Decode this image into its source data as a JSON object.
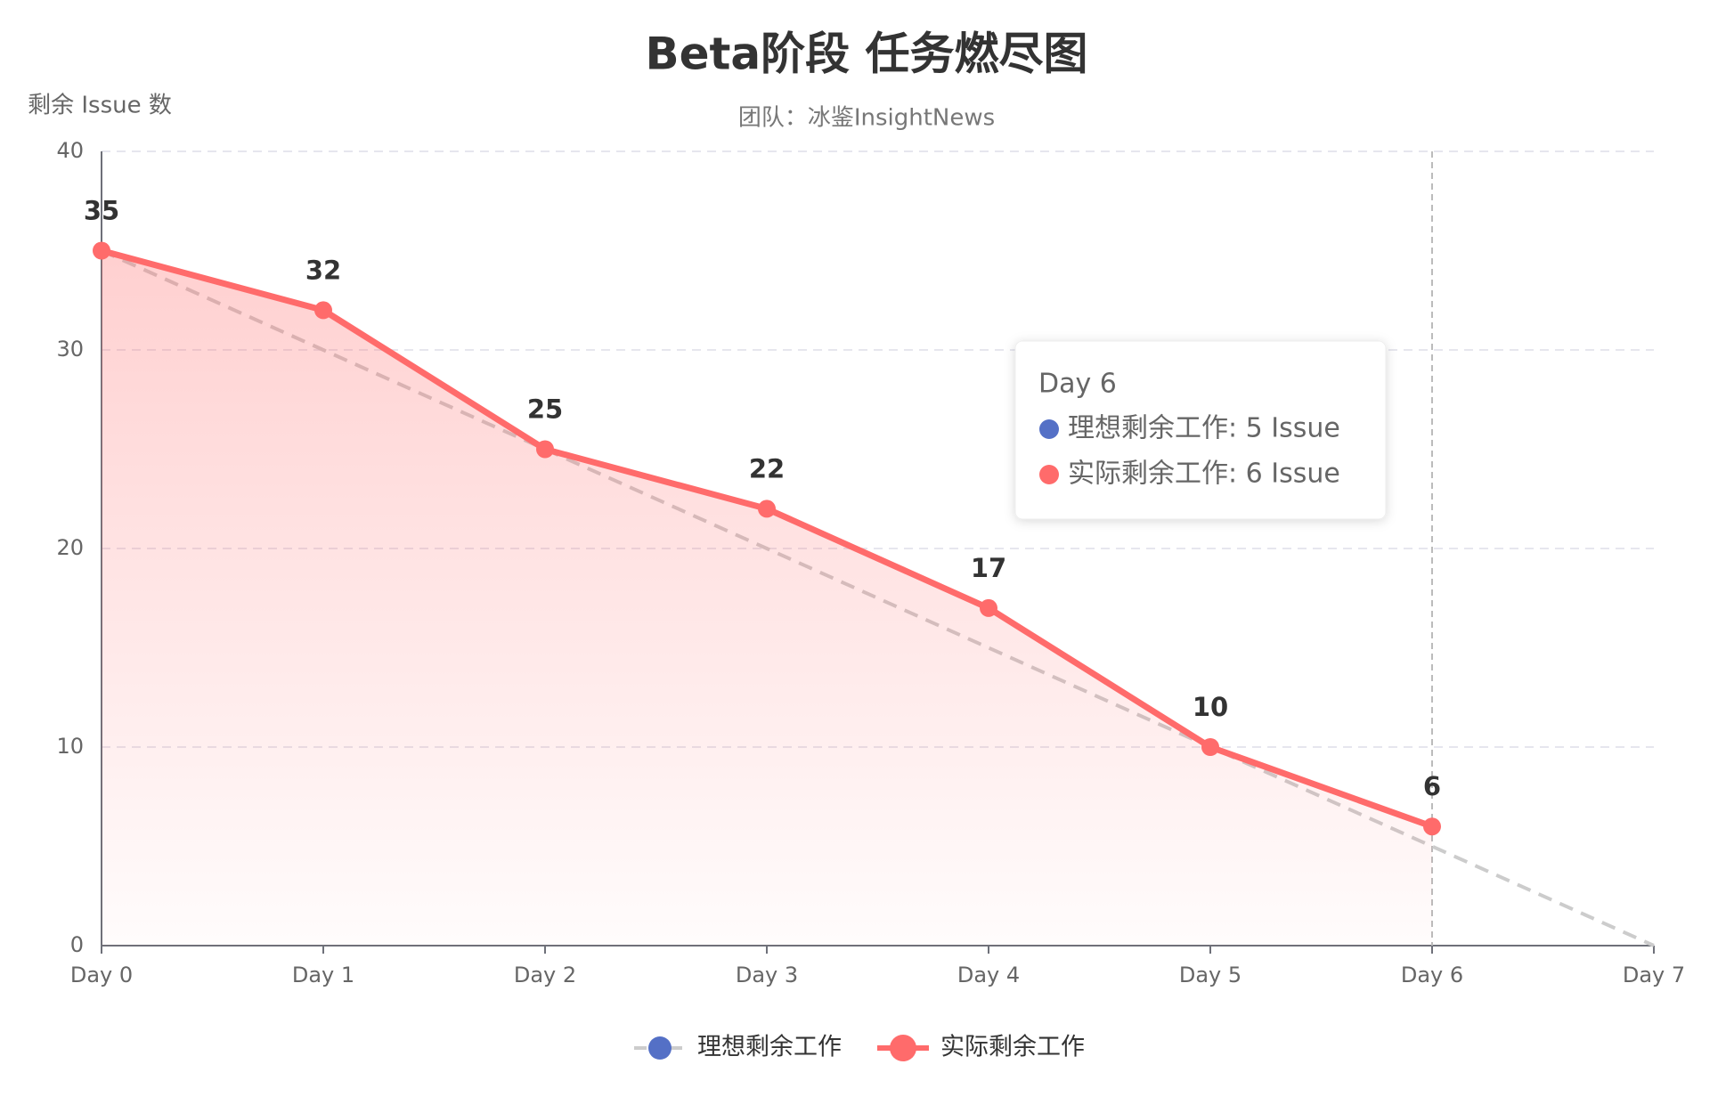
{
  "chart_data": {
    "type": "line",
    "title": "Beta阶段 任务燃尽图",
    "subtitle": "团队：冰鉴InsightNews",
    "y_axis_label": "剩余 Issue 数",
    "categories": [
      "Day 0",
      "Day 1",
      "Day 2",
      "Day 3",
      "Day 4",
      "Day 5",
      "Day 6",
      "Day 7"
    ],
    "series": [
      {
        "name": "理想剩余工作",
        "color": "#5470c6",
        "line_color": "#cccccc",
        "dashed": true,
        "values": [
          35,
          30,
          25,
          20,
          15,
          10,
          5,
          0
        ]
      },
      {
        "name": "实际剩余工作",
        "color": "#ff6b6b",
        "area": true,
        "data_labels": true,
        "values": [
          35,
          32,
          25,
          22,
          17,
          10,
          6,
          null
        ]
      }
    ],
    "ylim": [
      0,
      40
    ],
    "yticks": [
      0,
      10,
      20,
      30,
      40
    ],
    "grid": true,
    "legend": "bottom",
    "tooltip": {
      "title": "Day 6",
      "items": [
        "理想剩余工作: 5 Issue",
        "实际剩余工作: 6 Issue"
      ]
    }
  }
}
